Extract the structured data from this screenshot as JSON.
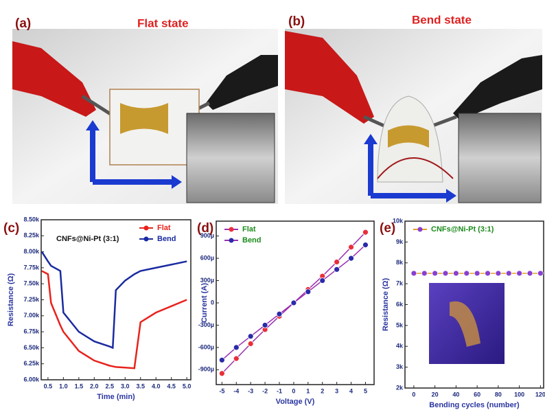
{
  "panels": {
    "a": {
      "label": "(a)",
      "title": "Flat state"
    },
    "b": {
      "label": "(b)",
      "title": "Bend state"
    }
  },
  "chart_data": [
    {
      "type": "line",
      "panel": "(c)",
      "annotation": "CNFs@Ni-Pt (3:1)",
      "xlabel": "Time (min)",
      "ylabel": "Resistance (Ω)",
      "markers": false,
      "x": [
        0.3,
        0.5,
        0.6,
        0.9,
        1.0,
        1.5,
        2.0,
        2.5,
        2.6,
        2.7,
        3.0,
        3.3,
        3.5,
        4.0,
        4.5,
        5.0
      ],
      "series": [
        {
          "name": "Flat",
          "color": "#e8221c",
          "values": [
            7700,
            7650,
            7200,
            6850,
            6750,
            6450,
            6300,
            6220,
            6210,
            6200,
            6190,
            6180,
            6900,
            7050,
            7150,
            7250
          ]
        },
        {
          "name": "Bend",
          "color": "#1a2aa0",
          "values": [
            8000,
            7850,
            7780,
            7700,
            7050,
            6750,
            6600,
            6520,
            6500,
            7400,
            7550,
            7650,
            7700,
            7750,
            7800,
            7850
          ]
        }
      ],
      "xlim": [
        0.28,
        5.13
      ],
      "xticks": [
        {
          "value": 0.5,
          "label": "0.5"
        },
        {
          "value": 1,
          "label": "1.0"
        },
        {
          "value": 1.5,
          "label": "1.5"
        },
        {
          "value": 2,
          "label": "2.0"
        },
        {
          "value": 2.5,
          "label": "2.5"
        },
        {
          "value": 3,
          "label": "3.0"
        },
        {
          "value": 3.5,
          "label": "3.5"
        },
        {
          "value": 4,
          "label": "4.0"
        },
        {
          "value": 4.5,
          "label": "4.5"
        },
        {
          "value": 5,
          "label": "5.0"
        }
      ],
      "ylim": [
        6000,
        8500
      ],
      "yticks": [
        {
          "value": 6000,
          "label": "6.00k"
        },
        {
          "value": 6250,
          "label": "6.25k"
        },
        {
          "value": 6500,
          "label": "6.50k"
        },
        {
          "value": 6750,
          "label": "6.75k"
        },
        {
          "value": 7000,
          "label": "7.00k"
        },
        {
          "value": 7250,
          "label": "7.25k"
        },
        {
          "value": 7500,
          "label": "7.50k"
        },
        {
          "value": 7750,
          "label": "7.75k"
        },
        {
          "value": 8000,
          "label": "8.00k"
        },
        {
          "value": 8250,
          "label": "8.25k"
        },
        {
          "value": 8500,
          "label": "8.50k"
        }
      ],
      "legend": "top-right"
    },
    {
      "type": "line",
      "panel": "(d)",
      "xlabel": "Voltage (V)",
      "ylabel": "Current (A)",
      "markers": true,
      "x": [
        -5,
        -4,
        -3,
        -2,
        -1,
        0,
        1,
        2,
        3,
        4,
        5
      ],
      "series": [
        {
          "name": "Flat",
          "color": "#e8303a",
          "line_color": "#9a2fb0",
          "values": [
            -0.00095,
            -0.00075,
            -0.00055,
            -0.00036,
            -0.00018,
            0,
            0.00018,
            0.00036,
            0.00055,
            0.00075,
            0.00095
          ]
        },
        {
          "name": "Bend",
          "color": "#2b2aa8",
          "line_color": "#9a2fb0",
          "values": [
            -0.00077,
            -0.0006,
            -0.00045,
            -0.0003,
            -0.00015,
            0,
            0.00015,
            0.0003,
            0.00045,
            0.0006,
            0.00078
          ]
        }
      ],
      "xlim": [
        -5.4,
        5.6
      ],
      "xticks": [
        -5,
        -4,
        -3,
        -2,
        -1,
        0,
        1,
        2,
        3,
        4,
        5
      ],
      "ylim": [
        -0.0011,
        0.0011
      ],
      "yticks": [
        {
          "value": -0.0009,
          "label": "-900µ"
        },
        {
          "value": -0.0006,
          "label": "-600µ"
        },
        {
          "value": -0.0003,
          "label": "-300µ"
        },
        0,
        {
          "value": 0.0003,
          "label": "300µ"
        },
        {
          "value": 0.0006,
          "label": "600µ"
        },
        {
          "value": 0.0009,
          "label": "900µ"
        }
      ],
      "legend": "top-left"
    },
    {
      "type": "line",
      "panel": "(e)",
      "xlabel": "Bending cycles (number)",
      "ylabel": "Resistance (Ω)",
      "markers": true,
      "x": [
        0,
        10,
        20,
        30,
        40,
        50,
        60,
        70,
        80,
        90,
        100,
        110,
        120
      ],
      "series": [
        {
          "name": "CNFs@Ni-Pt (3:1)",
          "color": "#8a3fd0",
          "line_color": "#e0a020",
          "values": [
            7500,
            7500,
            7500,
            7500,
            7500,
            7500,
            7500,
            7500,
            7500,
            7500,
            7500,
            7500,
            7500
          ]
        }
      ],
      "xlim": [
        -8.4,
        123
      ],
      "xticks": [
        0,
        20,
        40,
        60,
        80,
        100,
        120
      ],
      "ylim": [
        2000,
        10000
      ],
      "yticks": [
        {
          "value": 2000,
          "label": "2k"
        },
        {
          "value": 3000,
          "label": "3k"
        },
        {
          "value": 4000,
          "label": "4k"
        },
        {
          "value": 5000,
          "label": "5k"
        },
        {
          "value": 6000,
          "label": "6k"
        },
        {
          "value": 7000,
          "label": "7k"
        },
        {
          "value": 8000,
          "label": "8k"
        },
        {
          "value": 9000,
          "label": "9k"
        },
        {
          "value": 10000,
          "label": "10k"
        }
      ],
      "legend": "top-left"
    }
  ]
}
